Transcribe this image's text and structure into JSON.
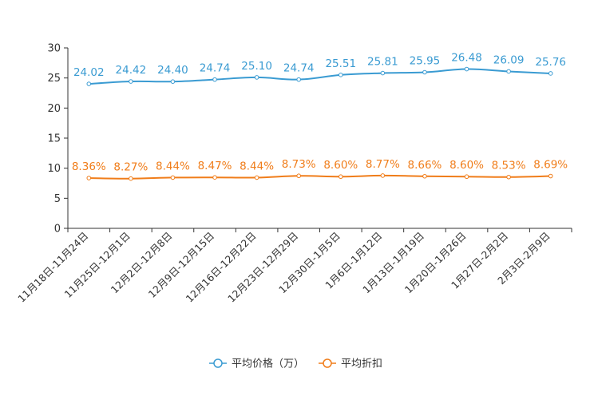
{
  "chart_data": {
    "type": "line",
    "title": "",
    "xlabel": "",
    "ylabel": "",
    "ylim": [
      0,
      30
    ],
    "yticks": [
      0,
      5,
      10,
      15,
      20,
      25,
      30
    ],
    "grid": false,
    "legend_position": "bottom",
    "categories": [
      "11月18日-11月24日",
      "11月25日-12月1日",
      "12月2日-12月8日",
      "12月9日-12月15日",
      "12月16日-12月22日",
      "12月23日-12月29日",
      "12月30日-1月5日",
      "1月6日-1月12日",
      "1月13日-1月19日",
      "1月20日-1月26日",
      "1月27日-2月2日",
      "2月3日-2月9日"
    ],
    "series": [
      {
        "name": "平均价格（万）",
        "color": "#3a9bd2",
        "values": [
          24.02,
          24.42,
          24.4,
          24.74,
          25.1,
          24.74,
          25.51,
          25.81,
          25.95,
          26.48,
          26.09,
          25.76
        ],
        "labels": [
          "24.02",
          "24.42",
          "24.40",
          "24.74",
          "25.10",
          "24.74",
          "25.51",
          "25.81",
          "25.95",
          "26.48",
          "26.09",
          "25.76"
        ]
      },
      {
        "name": "平均折扣",
        "color": "#f07d1a",
        "values": [
          8.36,
          8.27,
          8.44,
          8.47,
          8.44,
          8.73,
          8.6,
          8.77,
          8.66,
          8.6,
          8.53,
          8.69
        ],
        "labels": [
          "8.36%",
          "8.27%",
          "8.44%",
          "8.47%",
          "8.44%",
          "8.73%",
          "8.60%",
          "8.77%",
          "8.66%",
          "8.60%",
          "8.53%",
          "8.69%"
        ]
      }
    ]
  }
}
